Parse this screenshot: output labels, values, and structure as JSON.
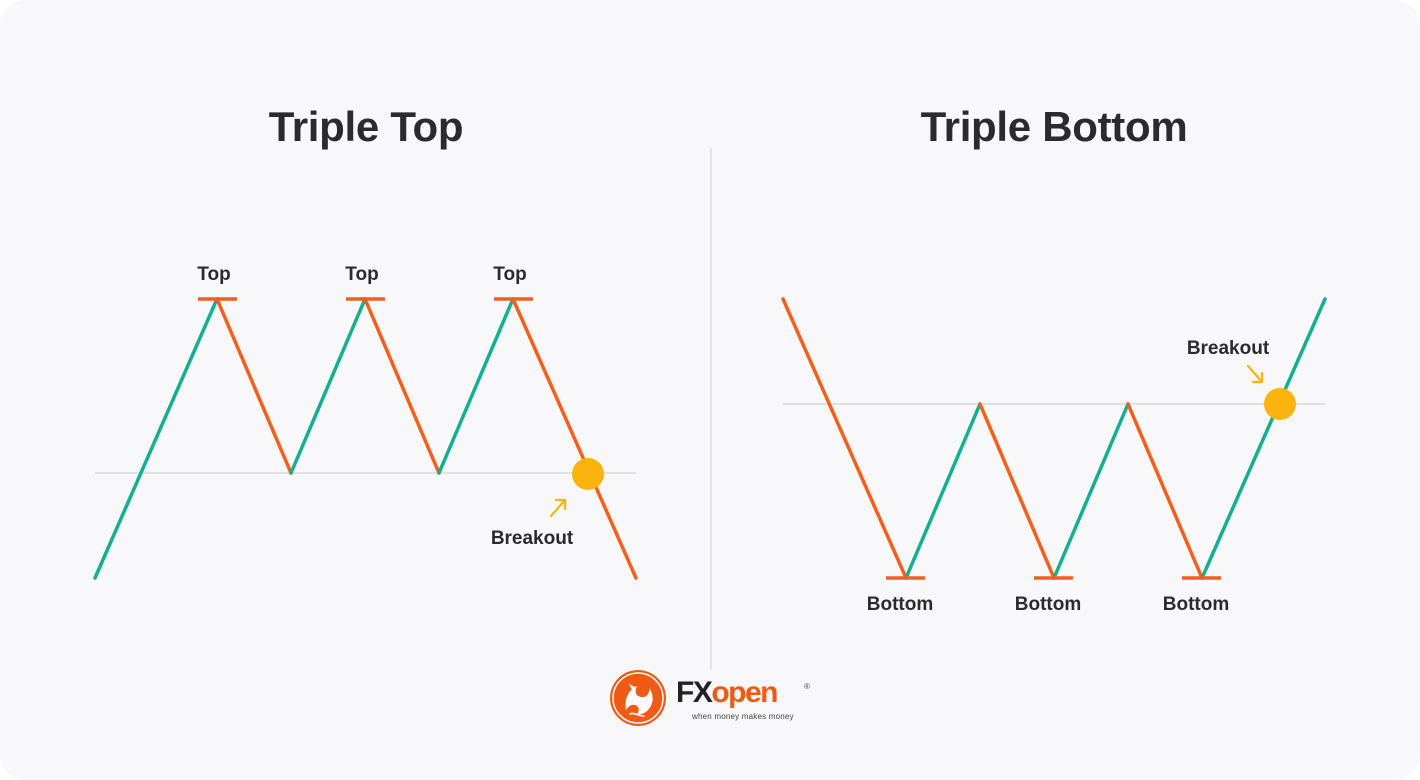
{
  "left_panel": {
    "title": "Triple Top",
    "peak_labels": [
      "Top",
      "Top",
      "Top"
    ],
    "breakout_label": "Breakout"
  },
  "right_panel": {
    "title": "Triple Bottom",
    "trough_labels": [
      "Bottom",
      "Bottom",
      "Bottom"
    ],
    "breakout_label": "Breakout"
  },
  "colors": {
    "up_line": "#14b08c",
    "down_line": "#f4601c",
    "marker": "#f4601c",
    "support_line": "#d9d9de",
    "breakout_dot": "#fbb40e",
    "arrow": "#fbb40e",
    "background": "#f8f8fa"
  },
  "logo": {
    "brand_dark": "FX",
    "brand_accent": "open",
    "registered": "®",
    "tagline": "when money makes money",
    "icon": "dragon-emblem-icon"
  }
}
